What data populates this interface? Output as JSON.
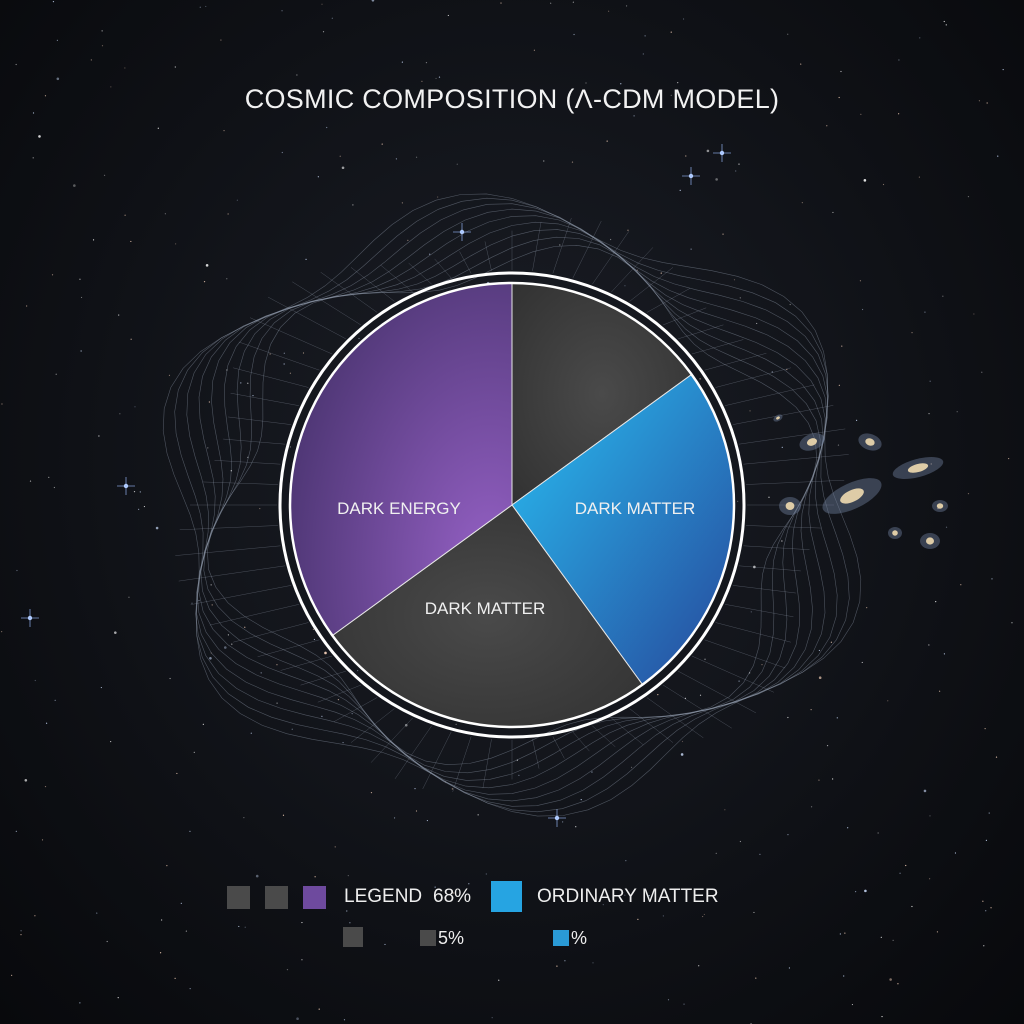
{
  "chart_data": {
    "type": "pie",
    "title": "COSMIC COMPOSITION (Λ-CDM MODEL)",
    "start_angle": "12 o'clock, clockwise",
    "slices": [
      {
        "label": "",
        "value": 15,
        "color": "#3f3f3f"
      },
      {
        "label": "DARK MATTER",
        "value": 25,
        "color": "#26a4e2"
      },
      {
        "label": "DARK MATTER",
        "value": 25,
        "color": "#3f3f3f"
      },
      {
        "label": "DARK ENERGY",
        "value": 35,
        "color": "#7b50ab"
      }
    ],
    "legend": {
      "row1": {
        "swatch_colors": [
          "#4a4a4a",
          "#4a4a4a",
          "#6e4a9e"
        ],
        "text": "LEGEND",
        "percent": "68%",
        "big_swatch_color": "#26a4e2",
        "label": "ORDINARY MATTER"
      },
      "row2": {
        "swatch_colors": [
          "#4a4a4a",
          "#4a4a4a",
          "#2a9ad6"
        ],
        "percent_a": "5%",
        "percent_b": "%"
      }
    }
  }
}
